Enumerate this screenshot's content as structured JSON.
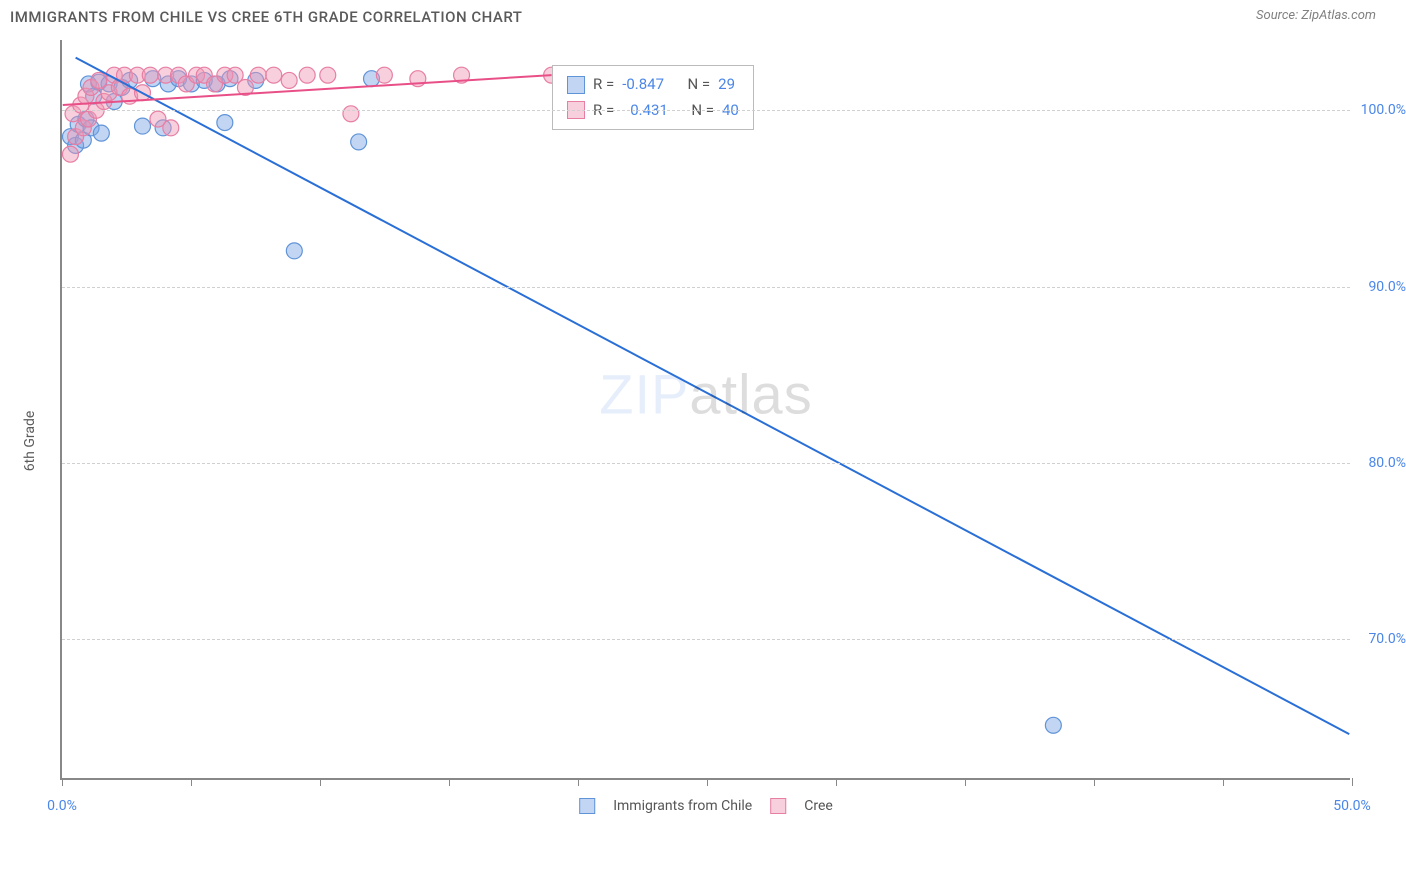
{
  "header": {
    "title": "IMMIGRANTS FROM CHILE VS CREE 6TH GRADE CORRELATION CHART",
    "source": "Source: ZipAtlas.com"
  },
  "chart": {
    "type": "scatter",
    "ylabel": "6th Grade",
    "xlim": [
      0,
      50
    ],
    "ylim": [
      62,
      104
    ],
    "x_ticks": [
      0,
      5,
      10,
      15,
      20,
      25,
      30,
      35,
      40,
      45,
      50
    ],
    "x_tick_labels": {
      "0": "0.0%",
      "50": "50.0%"
    },
    "y_gridlines": [
      70,
      80,
      90,
      100
    ],
    "y_tick_labels": {
      "70": "70.0%",
      "80": "80.0%",
      "90": "90.0%",
      "100": "100.0%"
    },
    "grid_color": "#d0d0d0",
    "axis_color": "#888888",
    "text_color": "#5a5a5a",
    "tick_label_color": "#4a86e8",
    "background_color": "#ffffff",
    "marker_radius": 8,
    "marker_stroke_width": 1.2,
    "line_width": 2,
    "watermark": {
      "prefix": "ZIP",
      "suffix": "atlas",
      "prefix_color": "#4a86e8",
      "suffix_color": "#9aa0a6"
    },
    "series": [
      {
        "name": "Immigrants from Chile",
        "fill_color": "rgba(120,165,230,0.45)",
        "stroke_color": "#6094d8",
        "line_color": "#2a6fd6",
        "R_label": "R =",
        "R_value": "-0.847",
        "N_label": "N =",
        "N_value": "29",
        "trend": {
          "x1": 0.5,
          "y1": 103,
          "x2": 50,
          "y2": 64.5
        },
        "points": [
          [
            0.3,
            98.5
          ],
          [
            0.5,
            98.0
          ],
          [
            0.6,
            99.2
          ],
          [
            0.8,
            98.3
          ],
          [
            0.9,
            99.5
          ],
          [
            1.0,
            101.5
          ],
          [
            1.1,
            99.0
          ],
          [
            1.2,
            100.8
          ],
          [
            1.4,
            101.6
          ],
          [
            1.5,
            98.7
          ],
          [
            1.8,
            101.5
          ],
          [
            2.0,
            100.5
          ],
          [
            2.3,
            101.3
          ],
          [
            2.6,
            101.7
          ],
          [
            3.1,
            99.1
          ],
          [
            3.5,
            101.8
          ],
          [
            3.9,
            99.0
          ],
          [
            4.1,
            101.5
          ],
          [
            4.5,
            101.8
          ],
          [
            5.0,
            101.5
          ],
          [
            5.5,
            101.7
          ],
          [
            6.0,
            101.5
          ],
          [
            6.3,
            99.3
          ],
          [
            6.5,
            101.8
          ],
          [
            7.5,
            101.7
          ],
          [
            9.0,
            92.0
          ],
          [
            11.5,
            98.2
          ],
          [
            12.0,
            101.8
          ],
          [
            38.5,
            65.0
          ]
        ]
      },
      {
        "name": "Cree",
        "fill_color": "rgba(240,150,180,0.45)",
        "stroke_color": "#e77ea4",
        "line_color": "#e94f87",
        "R_label": "R =",
        "R_value": "0.431",
        "N_label": "N =",
        "N_value": "40",
        "trend": {
          "x1": 0,
          "y1": 100.3,
          "x2": 19,
          "y2": 102.0
        },
        "points": [
          [
            0.3,
            97.5
          ],
          [
            0.4,
            99.8
          ],
          [
            0.5,
            98.5
          ],
          [
            0.7,
            100.3
          ],
          [
            0.8,
            99.0
          ],
          [
            0.9,
            100.8
          ],
          [
            1.0,
            99.5
          ],
          [
            1.1,
            101.3
          ],
          [
            1.3,
            100.0
          ],
          [
            1.4,
            101.7
          ],
          [
            1.6,
            100.5
          ],
          [
            1.8,
            101.0
          ],
          [
            2.0,
            102.0
          ],
          [
            2.2,
            101.3
          ],
          [
            2.4,
            102.0
          ],
          [
            2.6,
            100.8
          ],
          [
            2.9,
            102.0
          ],
          [
            3.1,
            101.0
          ],
          [
            3.4,
            102.0
          ],
          [
            3.7,
            99.5
          ],
          [
            4.0,
            102.0
          ],
          [
            4.2,
            99.0
          ],
          [
            4.5,
            102.0
          ],
          [
            4.8,
            101.5
          ],
          [
            5.2,
            102.0
          ],
          [
            5.5,
            102.0
          ],
          [
            5.9,
            101.5
          ],
          [
            6.3,
            102.0
          ],
          [
            6.7,
            102.0
          ],
          [
            7.1,
            101.3
          ],
          [
            7.6,
            102.0
          ],
          [
            8.2,
            102.0
          ],
          [
            8.8,
            101.7
          ],
          [
            9.5,
            102.0
          ],
          [
            10.3,
            102.0
          ],
          [
            11.2,
            99.8
          ],
          [
            12.5,
            102.0
          ],
          [
            13.8,
            101.8
          ],
          [
            15.5,
            102.0
          ],
          [
            19.0,
            102.0
          ]
        ]
      }
    ],
    "legend_top": {
      "rows": [
        0,
        1
      ]
    },
    "legend_bottom": {
      "items": [
        0,
        1
      ]
    }
  }
}
